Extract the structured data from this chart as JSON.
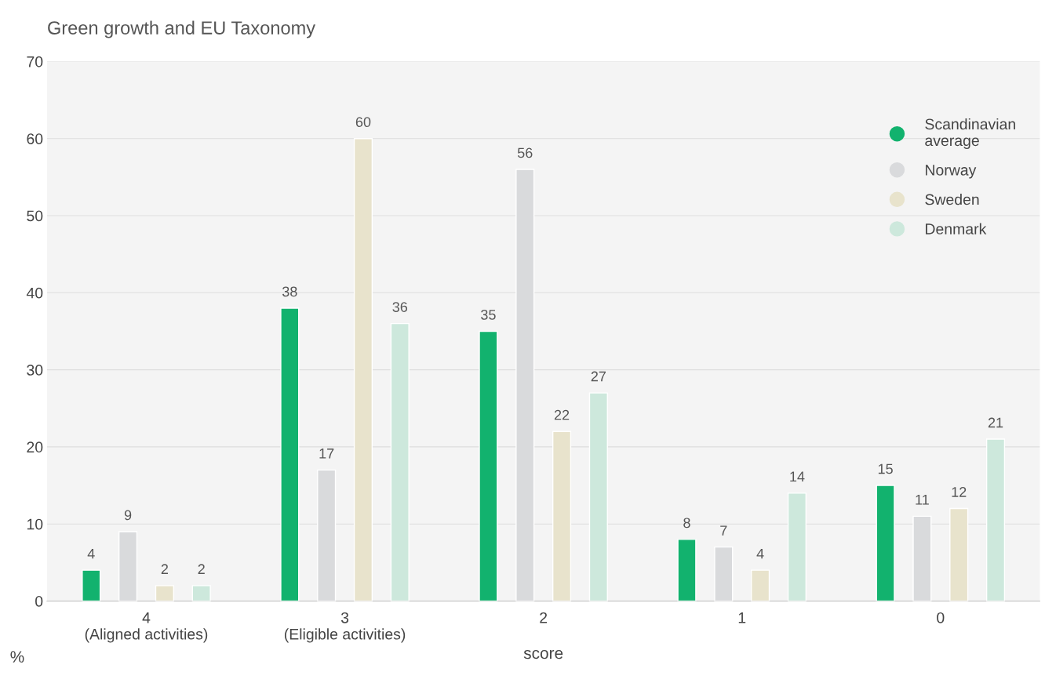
{
  "chart_data": {
    "type": "bar",
    "title": "Green growth and EU Taxonomy",
    "xlabel": "score",
    "ylabel": "%",
    "categories": [
      "4\n(Aligned activities)",
      "3\n(Eligible activities)",
      "2",
      "1",
      "0"
    ],
    "series": [
      {
        "name": "Scandinavian\naverage",
        "color": "#12b26e",
        "values": [
          4,
          38,
          35,
          8,
          15
        ]
      },
      {
        "name": "Norway",
        "color": "#d9dadc",
        "values": [
          9,
          17,
          56,
          7,
          11
        ]
      },
      {
        "name": "Sweden",
        "color": "#e8e3cc",
        "values": [
          2,
          60,
          22,
          4,
          12
        ]
      },
      {
        "name": "Denmark",
        "color": "#cde8dc",
        "values": [
          2,
          36,
          27,
          14,
          21
        ]
      }
    ],
    "ylim": [
      0,
      70
    ],
    "yticks": [
      0,
      10,
      20,
      30,
      40,
      50,
      60,
      70
    ],
    "grid": "y",
    "legend": "top right",
    "data_labels": true
  }
}
